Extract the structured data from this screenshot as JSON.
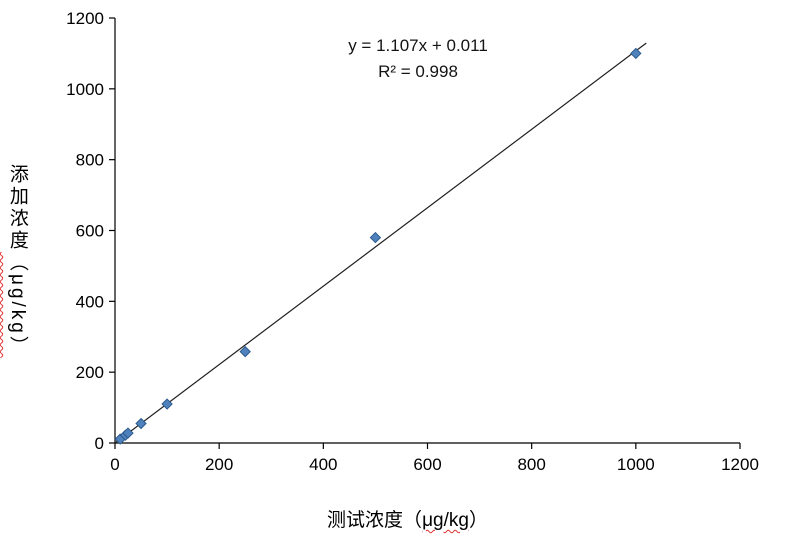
{
  "chart_data": {
    "type": "scatter",
    "title": "",
    "xlabel": {
      "pre": "测试浓度（",
      "unit": "μg/kg",
      "post": "）"
    },
    "ylabel": {
      "cjk": "添加浓度",
      "unit": "（μg/kg）"
    },
    "xlim": [
      0,
      1200
    ],
    "ylim": [
      0,
      1200
    ],
    "x_ticks": [
      0,
      200,
      400,
      600,
      800,
      1000,
      1200
    ],
    "y_ticks": [
      0,
      200,
      400,
      600,
      800,
      1000,
      1200
    ],
    "grid": false,
    "legend": false,
    "points": [
      [
        10,
        11
      ],
      [
        20,
        22
      ],
      [
        25,
        28
      ],
      [
        50,
        55
      ],
      [
        100,
        110
      ],
      [
        250,
        258
      ],
      [
        500,
        580
      ],
      [
        1000,
        1100
      ]
    ],
    "trendline": {
      "slope": 1.107,
      "intercept": 0.011,
      "x_range": [
        2,
        1020
      ],
      "color": "#1f1f1f"
    },
    "annotations": {
      "equation": "y = 1.107x + 0.011",
      "r_squared": "R² = 0.998"
    },
    "marker": {
      "shape": "diamond",
      "color": "#4f81bd",
      "stroke": "#2c5a8c",
      "size": 10
    },
    "axis_color": "#000000",
    "tick_label_size": 17
  }
}
